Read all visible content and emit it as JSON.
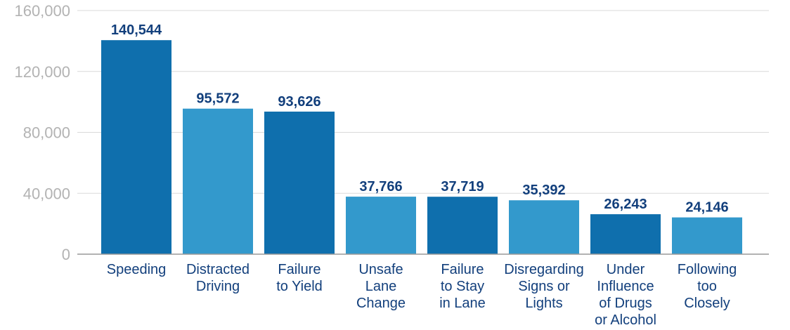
{
  "chart_data": {
    "type": "bar",
    "title": "",
    "xlabel": "",
    "ylabel": "",
    "categories": [
      "Speeding",
      "Distracted Driving",
      "Failure to Yield",
      "Unsafe Lane Change",
      "Failure to Stay in Lane",
      "Disregarding Signs or Lights",
      "Under Influence of Drugs or Alcohol",
      "Following too Closely"
    ],
    "category_lines": [
      [
        "Speeding"
      ],
      [
        "Distracted",
        "Driving"
      ],
      [
        "Failure",
        "to Yield"
      ],
      [
        "Unsafe",
        "Lane",
        "Change"
      ],
      [
        "Failure",
        "to Stay",
        "in Lane"
      ],
      [
        "Disregarding",
        "Signs or",
        "Lights"
      ],
      [
        "Under",
        "Influence",
        "of Drugs",
        "or Alcohol"
      ],
      [
        "Following",
        "too",
        "Closely"
      ]
    ],
    "values": [
      140544,
      95572,
      93626,
      37766,
      37719,
      35392,
      26243,
      24146
    ],
    "value_labels": [
      "140,544",
      "95,572",
      "93,626",
      "37,766",
      "37,719",
      "35,392",
      "26,243",
      "24,146"
    ],
    "ylim": [
      0,
      160000
    ],
    "yticks": [
      0,
      40000,
      80000,
      120000,
      160000
    ],
    "ytick_labels": [
      "0",
      "40,000",
      "80,000",
      "120,000",
      "160,000"
    ],
    "grid": true,
    "legend": "none",
    "colors": [
      "#0f6fad",
      "#3399cc",
      "#0f6fad",
      "#3399cc",
      "#0f6fad",
      "#3399cc",
      "#0f6fad",
      "#3399cc"
    ],
    "text_color": "#123f7c",
    "axis_tick_color": "#b3b3b3"
  }
}
